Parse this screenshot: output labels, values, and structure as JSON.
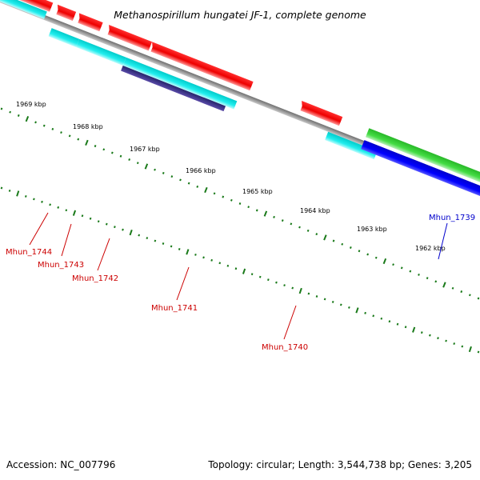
{
  "map": {
    "title": "Methanospirillum hungatei JF-1, complete genome",
    "accession": "Accession: NC_007796",
    "summary": "Topology: circular; Length: 3,544,738 bp; Genes: 3,205"
  },
  "colors": {
    "backbone": "#8a8a8a",
    "tick": "#1a7a1a",
    "label_red": "#cc0000",
    "label_blue": "#0000cc"
  },
  "ticks": [
    "1969 kbp",
    "1968 kbp",
    "1967 kbp",
    "1966 kbp",
    "1965 kbp",
    "1964 kbp",
    "1963 kbp",
    "1962 kbp"
  ],
  "genes": [
    {
      "label": "Mhun_1744",
      "color": "#cc0000"
    },
    {
      "label": "Mhun_1743",
      "color": "#cc0000"
    },
    {
      "label": "Mhun_1742",
      "color": "#cc0000"
    },
    {
      "label": "Mhun_1741",
      "color": "#cc0000"
    },
    {
      "label": "Mhun_1740",
      "color": "#cc0000"
    },
    {
      "label": "Mhun_1739",
      "color": "#0000cc"
    }
  ]
}
